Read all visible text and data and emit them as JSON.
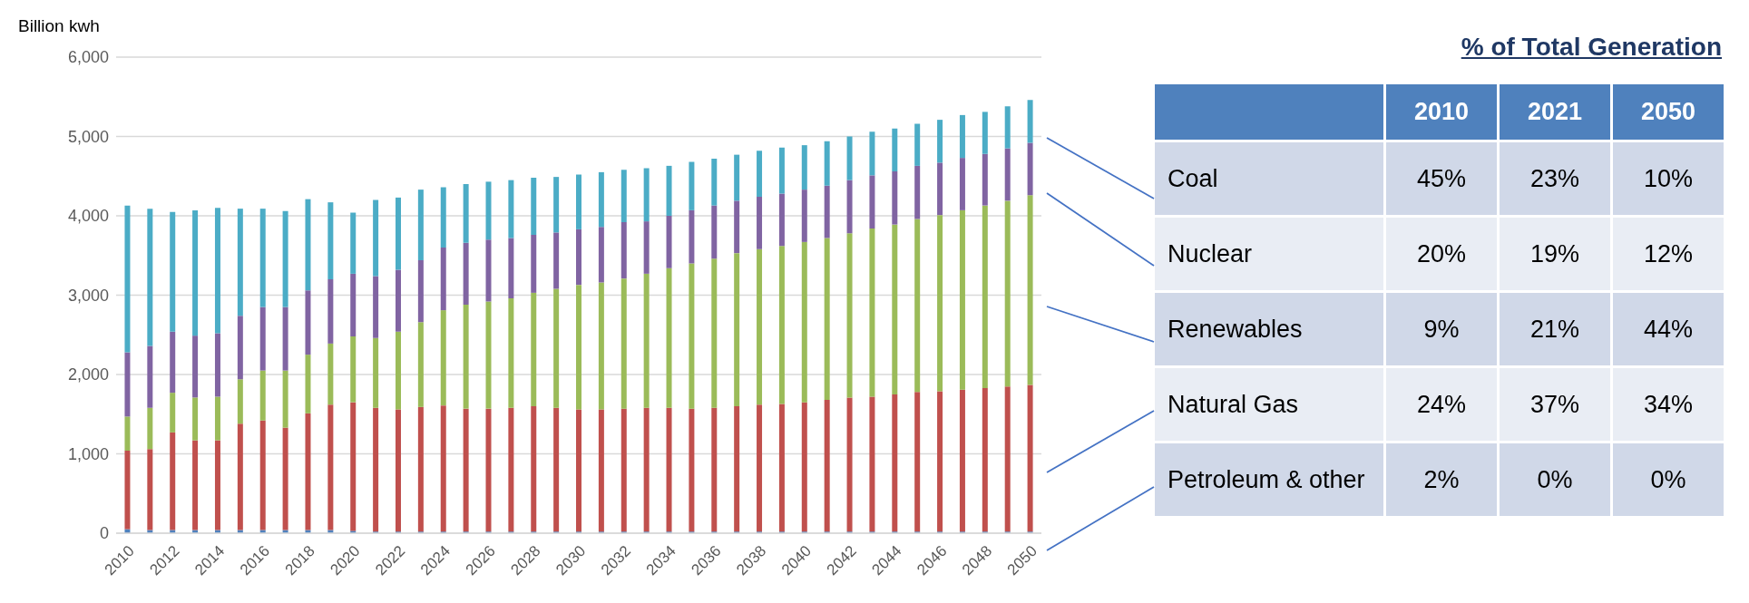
{
  "chart_data": [
    {
      "type": "bar",
      "stacked": true,
      "ylabel": "Billion kwh",
      "grid": "y",
      "legend": false,
      "categories": [
        "2010",
        null,
        "2012",
        null,
        "2014",
        null,
        "2016",
        null,
        "2018",
        null,
        "2020",
        null,
        "2022",
        null,
        "2024",
        null,
        "2026",
        null,
        "2028",
        null,
        "2030",
        null,
        "2032",
        null,
        "2034",
        null,
        "2036",
        null,
        "2038",
        null,
        "2040",
        null,
        "2042",
        null,
        "2044",
        null,
        "2046",
        null,
        "2048",
        null,
        "2050"
      ],
      "ylim": [
        0,
        6000
      ],
      "yticks": [
        0,
        {
          "value": 1000,
          "label": "1,000"
        },
        {
          "value": 2000,
          "label": "2,000"
        },
        {
          "value": 3000,
          "label": "3,000"
        },
        {
          "value": 4000,
          "label": "4,000"
        },
        {
          "value": 5000,
          "label": "5,000"
        },
        {
          "value": 6000,
          "label": "6,000"
        }
      ],
      "series": [
        {
          "color": "#4f81bd",
          "values": [
            50,
            40,
            40,
            40,
            40,
            40,
            40,
            40,
            40,
            40,
            30,
            20,
            20,
            20,
            20,
            20,
            20,
            20,
            20,
            20,
            20,
            20,
            20,
            20,
            20,
            20,
            20,
            20,
            20,
            20,
            20,
            20,
            20,
            20,
            20,
            20,
            20,
            20,
            20,
            20,
            20
          ]
        },
        {
          "color": "#c0504d",
          "values": [
            990,
            1020,
            1230,
            1130,
            1130,
            1340,
            1380,
            1290,
            1470,
            1580,
            1620,
            1560,
            1540,
            1570,
            1590,
            1550,
            1550,
            1560,
            1580,
            1560,
            1540,
            1540,
            1550,
            1560,
            1560,
            1550,
            1560,
            1580,
            1600,
            1610,
            1630,
            1660,
            1690,
            1700,
            1730,
            1760,
            1770,
            1790,
            1810,
            1830,
            1850
          ]
        },
        {
          "color": "#9bbb59",
          "values": [
            430,
            520,
            500,
            540,
            550,
            560,
            630,
            720,
            740,
            770,
            830,
            880,
            980,
            1070,
            1200,
            1310,
            1350,
            1380,
            1430,
            1500,
            1570,
            1600,
            1640,
            1690,
            1760,
            1830,
            1880,
            1930,
            1960,
            1990,
            2020,
            2040,
            2070,
            2120,
            2140,
            2180,
            2220,
            2260,
            2300,
            2340,
            2390
          ]
        },
        {
          "color": "#8064a2",
          "values": [
            810,
            780,
            770,
            780,
            800,
            800,
            800,
            800,
            810,
            810,
            790,
            780,
            780,
            780,
            790,
            780,
            780,
            760,
            730,
            710,
            700,
            700,
            710,
            660,
            660,
            670,
            670,
            660,
            660,
            660,
            660,
            660,
            670,
            670,
            670,
            670,
            660,
            660,
            650,
            660,
            660
          ]
        },
        {
          "color": "#4bacc6",
          "values": [
            1850,
            1730,
            1510,
            1580,
            1580,
            1350,
            1240,
            1210,
            1150,
            970,
            770,
            960,
            910,
            890,
            760,
            740,
            730,
            730,
            720,
            700,
            690,
            690,
            660,
            670,
            630,
            610,
            590,
            580,
            580,
            580,
            560,
            560,
            550,
            550,
            540,
            530,
            540,
            540,
            530,
            530,
            540
          ]
        }
      ]
    },
    {
      "type": "other",
      "title": "% of Total Generation",
      "categories": [
        "2010",
        "2021",
        "2050"
      ],
      "y_categories": [
        "Coal",
        "Nuclear",
        "Renewables",
        "Natural Gas",
        "Petroleum & other"
      ],
      "cell_labels": [
        [
          "45%",
          "23%",
          "10%"
        ],
        [
          "20%",
          "19%",
          "12%"
        ],
        [
          "9%",
          "21%",
          "44%"
        ],
        [
          "24%",
          "37%",
          "34%"
        ],
        [
          "2%",
          "0%",
          "0%"
        ]
      ]
    }
  ]
}
